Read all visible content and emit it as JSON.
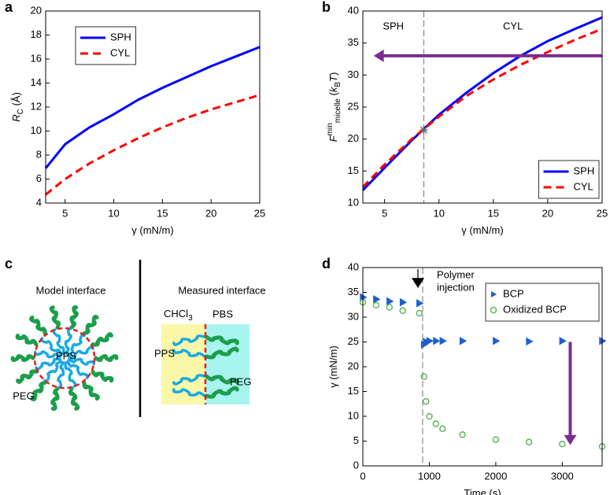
{
  "chart_data": [
    {
      "panel": "a",
      "type": "line",
      "x": [
        3,
        5,
        7.5,
        10,
        12.5,
        15,
        17.5,
        20,
        22.5,
        25
      ],
      "series": [
        {
          "name": "SPH",
          "color": "#0000ff",
          "values": [
            6.9,
            8.9,
            10.3,
            11.4,
            12.6,
            13.6,
            14.5,
            15.4,
            16.2,
            17.0
          ]
        },
        {
          "name": "CYL",
          "color": "#ff0000",
          "dash": true,
          "values": [
            4.7,
            6.0,
            7.3,
            8.4,
            9.4,
            10.3,
            11.1,
            11.8,
            12.4,
            13.0
          ]
        }
      ],
      "xlim": [
        3,
        25
      ],
      "xticks": [
        5,
        10,
        15,
        20,
        25
      ],
      "ylim": [
        4,
        20
      ],
      "yticks": [
        4,
        6,
        8,
        10,
        12,
        14,
        16,
        18,
        20
      ],
      "xlabel": [
        {
          "text": "γ (mN/m)"
        }
      ],
      "ylabel": [
        {
          "text": "R",
          "style": "italic"
        },
        {
          "text": "C",
          "style": "sub"
        },
        {
          "text": " (Å)"
        }
      ],
      "legend": "upper left"
    },
    {
      "panel": "b",
      "type": "line",
      "x": [
        3,
        5,
        7.5,
        10,
        12.5,
        15,
        17.5,
        20,
        22.5,
        25
      ],
      "series": [
        {
          "name": "SPH",
          "color": "#0000ff",
          "values": [
            12.0,
            15.5,
            19.8,
            23.8,
            27.2,
            30.3,
            33.0,
            35.3,
            37.2,
            39.0
          ]
        },
        {
          "name": "CYL",
          "color": "#ff0000",
          "dash": true,
          "values": [
            12.5,
            16.0,
            20.0,
            23.5,
            26.7,
            29.3,
            31.6,
            33.6,
            35.5,
            37.2
          ]
        }
      ],
      "xlim": [
        3,
        25
      ],
      "xticks": [
        5,
        10,
        15,
        20,
        25
      ],
      "ylim": [
        10,
        40
      ],
      "yticks": [
        10,
        15,
        20,
        25,
        30,
        35,
        40
      ],
      "xlabel": [
        {
          "text": "γ (mN/m)"
        }
      ],
      "ylabel": [
        {
          "text": "F",
          "style": "italic"
        },
        {
          "text": "min",
          "style": "sup"
        },
        {
          "text": "micelle",
          "style": "sub"
        },
        {
          "text": " ("
        },
        {
          "text": "k",
          "style": "italic"
        },
        {
          "text": "B",
          "style": "sub"
        },
        {
          "text": "T",
          "style": "italic"
        },
        {
          "text": ")"
        }
      ],
      "legend": "lower right",
      "region_labels": [
        "SPH",
        "CYL"
      ],
      "transition": {
        "x": 8.6,
        "y": 21.4
      },
      "arrow": {
        "y": 33,
        "x_from": 25,
        "x_to": 4,
        "color": "#7b2d8e"
      }
    },
    {
      "panel": "d",
      "type": "scatter",
      "x": [
        0,
        200,
        400,
        600,
        850,
        920,
        950,
        1000,
        1100,
        1200,
        1500,
        2000,
        2500,
        3000,
        3600
      ],
      "series": [
        {
          "name": "BCP",
          "color": "#1f5fd0",
          "marker": "triangle",
          "values": [
            34,
            33.6,
            33.2,
            33,
            32.8,
            24.5,
            25,
            25.2,
            25.2,
            25.2,
            25.2,
            25.2,
            25.1,
            25.2,
            25.2
          ]
        },
        {
          "name": "Oxidized BCP",
          "color": "#5cb85c",
          "marker": "circle",
          "values": [
            33,
            32.4,
            32,
            31.3,
            30.8,
            18,
            13,
            10,
            8.5,
            7.5,
            6.3,
            5.3,
            4.8,
            4.4,
            3.9
          ]
        }
      ],
      "xlim": [
        0,
        3600
      ],
      "xticks": [
        0,
        1000,
        2000,
        3000
      ],
      "ylim": [
        0,
        40
      ],
      "yticks": [
        0,
        5,
        10,
        15,
        20,
        25,
        30,
        35,
        40
      ],
      "xlabel": [
        {
          "text": "Time (s)"
        }
      ],
      "ylabel": [
        {
          "text": "γ (mN/m)"
        }
      ],
      "legend": "upper right",
      "injection": {
        "x": 900,
        "label": [
          "Polymer",
          "injection"
        ]
      },
      "arrow": {
        "x": 3120,
        "y_from": 25,
        "y_to": 4.2,
        "color": "#7b2d8e"
      }
    }
  ],
  "diagram": {
    "panel": "c",
    "left_title": "Model interface",
    "right_title": "Measured interface",
    "solvent_left": [
      {
        "text": "CHCl"
      },
      {
        "text": "3",
        "style": "sub"
      }
    ],
    "solvent_right": "PBS",
    "model_core": "PPS",
    "model_shell": "PEG",
    "measured_left": "PPS",
    "measured_right": "PEG"
  }
}
